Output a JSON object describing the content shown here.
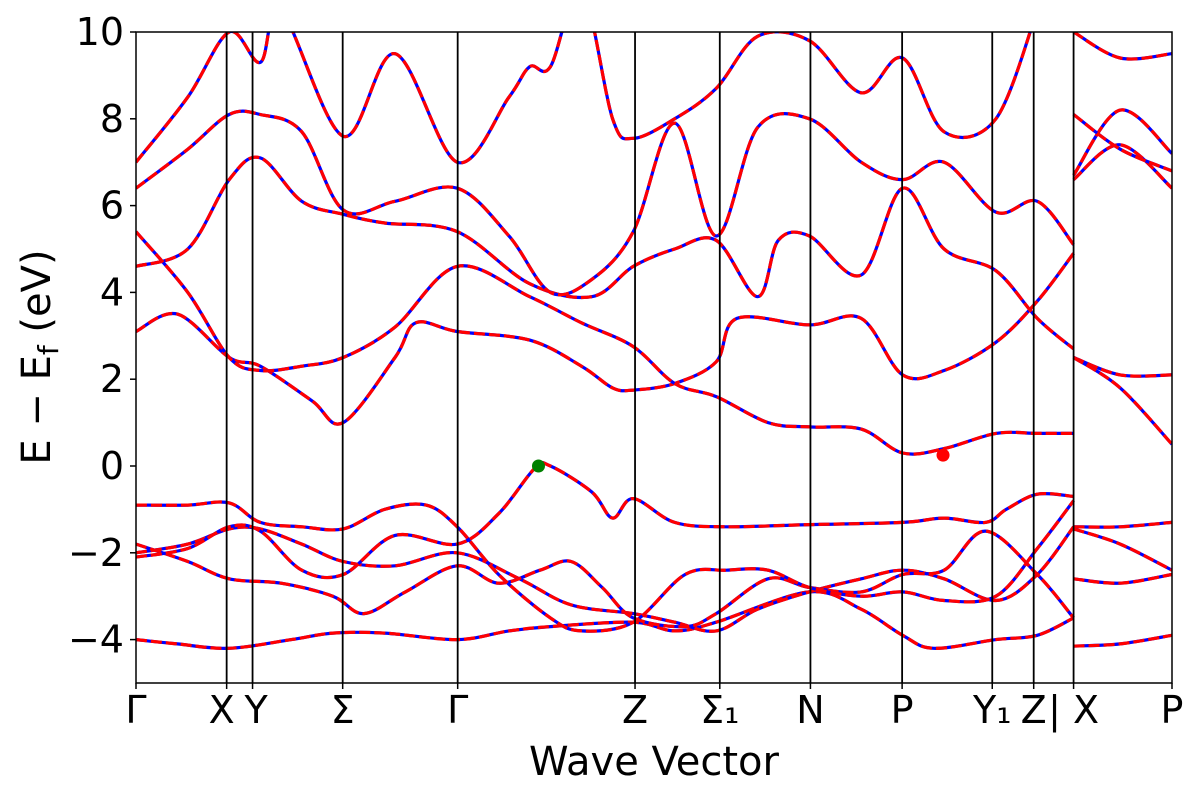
{
  "chart_data": {
    "type": "line",
    "xlabel": "Wave Vector",
    "ylabel": "E − E_f (eV)",
    "ylabel_parts": {
      "main": "E − E",
      "sub": "f",
      "unit": " (eV)"
    },
    "ylim": [
      -5,
      10
    ],
    "y_ticks": [
      -4,
      -2,
      0,
      2,
      4,
      6,
      8,
      10
    ],
    "y_tick_labels": [
      "−4",
      "−2",
      "0",
      "2",
      "4",
      "6",
      "8",
      "10"
    ],
    "k_ticks": [
      {
        "k": 0.0,
        "label": "Γ"
      },
      {
        "k": 0.0875,
        "label": "X"
      },
      {
        "k": 0.1125,
        "label": "Y"
      },
      {
        "k": 0.1995,
        "label": "Σ"
      },
      {
        "k": 0.3105,
        "label": "Γ"
      },
      {
        "k": 0.4817,
        "label": "Z"
      },
      {
        "k": 0.5635,
        "label": "Σ₁"
      },
      {
        "k": 0.651,
        "label": "N"
      },
      {
        "k": 0.7395,
        "label": "P"
      },
      {
        "k": 0.8265,
        "label": "Y₁"
      },
      {
        "k": 0.8665,
        "label": "Z"
      },
      {
        "k": 0.905,
        "label": "| X"
      },
      {
        "k": 1.0,
        "label": "P"
      }
    ],
    "k_break": 0.905,
    "x_range": [
      0,
      1
    ],
    "series": [
      {
        "style": "blue-solid-under-red-dashed",
        "bands": [
          [
            [
              0,
              -4.0
            ],
            [
              0.04,
              -4.1
            ],
            [
              0.09,
              -4.2
            ],
            [
              0.15,
              -4.0
            ],
            [
              0.19,
              -3.85
            ],
            [
              0.24,
              -3.85
            ],
            [
              0.31,
              -4.0
            ],
            [
              0.36,
              -3.8
            ],
            [
              0.4,
              -3.7
            ],
            [
              0.48,
              -3.6
            ],
            [
              0.52,
              -3.8
            ],
            [
              0.56,
              -3.6
            ],
            [
              0.65,
              -2.9
            ],
            [
              0.7,
              -3.3
            ],
            [
              0.74,
              -3.9
            ],
            [
              0.77,
              -4.2
            ],
            [
              0.83,
              -4.0
            ],
            [
              0.87,
              -3.9
            ],
            [
              0.905,
              -3.5
            ]
          ],
          [
            [
              0,
              -2.0
            ],
            [
              0.05,
              -1.8
            ],
            [
              0.09,
              -1.45
            ],
            [
              0.12,
              -1.45
            ],
            [
              0.16,
              -1.8
            ],
            [
              0.2,
              -2.2
            ],
            [
              0.25,
              -2.3
            ],
            [
              0.31,
              -2.0
            ],
            [
              0.37,
              -2.6
            ],
            [
              0.42,
              -3.2
            ],
            [
              0.48,
              -3.4
            ],
            [
              0.52,
              -3.6
            ],
            [
              0.56,
              -3.8
            ],
            [
              0.6,
              -3.3
            ],
            [
              0.65,
              -2.9
            ],
            [
              0.7,
              -2.6
            ],
            [
              0.74,
              -2.4
            ],
            [
              0.78,
              -2.6
            ],
            [
              0.83,
              -3.1
            ],
            [
              0.87,
              -2.5
            ],
            [
              0.905,
              -1.4
            ]
          ],
          [
            [
              0,
              -1.8
            ],
            [
              0.05,
              -2.2
            ],
            [
              0.09,
              -2.6
            ],
            [
              0.14,
              -2.7
            ],
            [
              0.19,
              -3.0
            ],
            [
              0.22,
              -3.4
            ],
            [
              0.26,
              -2.9
            ],
            [
              0.31,
              -2.3
            ],
            [
              0.35,
              -2.7
            ],
            [
              0.39,
              -2.4
            ],
            [
              0.42,
              -2.2
            ],
            [
              0.45,
              -2.8
            ],
            [
              0.48,
              -3.5
            ],
            [
              0.53,
              -3.7
            ],
            [
              0.56,
              -3.4
            ],
            [
              0.61,
              -2.6
            ],
            [
              0.65,
              -2.8
            ],
            [
              0.7,
              -2.9
            ],
            [
              0.74,
              -2.5
            ],
            [
              0.78,
              -2.4
            ],
            [
              0.82,
              -1.5
            ],
            [
              0.87,
              -2.5
            ],
            [
              0.905,
              -3.5
            ]
          ],
          [
            [
              0,
              -0.9
            ],
            [
              0.05,
              -0.9
            ],
            [
              0.09,
              -0.85
            ],
            [
              0.12,
              -1.3
            ],
            [
              0.16,
              -1.4
            ],
            [
              0.2,
              -1.45
            ],
            [
              0.24,
              -1.0
            ],
            [
              0.28,
              -0.9
            ],
            [
              0.31,
              -1.4
            ],
            [
              0.35,
              -2.5
            ],
            [
              0.4,
              -3.5
            ],
            [
              0.43,
              -3.8
            ],
            [
              0.48,
              -3.6
            ],
            [
              0.53,
              -2.5
            ],
            [
              0.57,
              -2.4
            ],
            [
              0.61,
              -2.4
            ],
            [
              0.65,
              -2.8
            ],
            [
              0.7,
              -3.0
            ],
            [
              0.74,
              -2.9
            ],
            [
              0.78,
              -3.1
            ],
            [
              0.83,
              -3.0
            ],
            [
              0.87,
              -1.9
            ],
            [
              0.905,
              -0.8
            ]
          ],
          [
            [
              0,
              -2.1
            ],
            [
              0.05,
              -1.9
            ],
            [
              0.09,
              -1.4
            ],
            [
              0.12,
              -1.5
            ],
            [
              0.16,
              -2.4
            ],
            [
              0.2,
              -2.5
            ],
            [
              0.25,
              -1.6
            ],
            [
              0.31,
              -1.8
            ],
            [
              0.35,
              -1.1
            ],
            [
              0.385,
              -0.05
            ],
            [
              0.4,
              0.0
            ],
            [
              0.44,
              -0.6
            ],
            [
              0.46,
              -1.2
            ],
            [
              0.48,
              -0.75
            ],
            [
              0.52,
              -1.3
            ],
            [
              0.57,
              -1.4
            ],
            [
              0.65,
              -1.35
            ],
            [
              0.74,
              -1.3
            ],
            [
              0.78,
              -1.2
            ],
            [
              0.82,
              -1.3
            ],
            [
              0.84,
              -1.0
            ],
            [
              0.87,
              -0.65
            ],
            [
              0.905,
              -0.7
            ]
          ],
          [
            [
              0,
              3.1
            ],
            [
              0.04,
              3.5
            ],
            [
              0.09,
              2.5
            ],
            [
              0.12,
              2.3
            ],
            [
              0.17,
              1.5
            ],
            [
              0.2,
              1.0
            ],
            [
              0.25,
              2.5
            ],
            [
              0.27,
              3.3
            ],
            [
              0.31,
              3.1
            ],
            [
              0.38,
              2.9
            ],
            [
              0.43,
              2.3
            ],
            [
              0.46,
              1.8
            ],
            [
              0.48,
              1.75
            ],
            [
              0.52,
              1.9
            ],
            [
              0.56,
              2.4
            ],
            [
              0.58,
              3.4
            ],
            [
              0.65,
              3.25
            ],
            [
              0.7,
              3.4
            ],
            [
              0.74,
              2.1
            ],
            [
              0.78,
              2.2
            ],
            [
              0.83,
              2.85
            ],
            [
              0.87,
              3.8
            ],
            [
              0.905,
              4.9
            ]
          ],
          [
            [
              0,
              4.6
            ],
            [
              0.05,
              5.0
            ],
            [
              0.09,
              6.6
            ],
            [
              0.12,
              7.1
            ],
            [
              0.16,
              6.1
            ],
            [
              0.2,
              5.8
            ],
            [
              0.24,
              5.6
            ],
            [
              0.31,
              5.4
            ],
            [
              0.38,
              4.2
            ],
            [
              0.44,
              3.9
            ],
            [
              0.48,
              4.6
            ],
            [
              0.52,
              5.0
            ],
            [
              0.56,
              5.2
            ],
            [
              0.6,
              3.9
            ],
            [
              0.62,
              5.2
            ],
            [
              0.65,
              5.3
            ],
            [
              0.7,
              4.4
            ],
            [
              0.74,
              6.4
            ],
            [
              0.78,
              5.0
            ],
            [
              0.83,
              4.5
            ],
            [
              0.87,
              3.4
            ],
            [
              0.905,
              2.7
            ]
          ],
          [
            [
              0,
              5.4
            ],
            [
              0.05,
              4.0
            ],
            [
              0.09,
              2.5
            ],
            [
              0.12,
              2.2
            ],
            [
              0.16,
              2.3
            ],
            [
              0.2,
              2.5
            ],
            [
              0.25,
              3.2
            ],
            [
              0.31,
              4.6
            ],
            [
              0.38,
              3.9
            ],
            [
              0.43,
              3.3
            ],
            [
              0.48,
              2.75
            ],
            [
              0.52,
              1.9
            ],
            [
              0.56,
              1.6
            ],
            [
              0.61,
              1.0
            ],
            [
              0.65,
              0.9
            ],
            [
              0.7,
              0.85
            ],
            [
              0.74,
              0.3
            ],
            [
              0.78,
              0.4
            ],
            [
              0.83,
              0.75
            ],
            [
              0.87,
              0.75
            ],
            [
              0.905,
              0.75
            ]
          ],
          [
            [
              0,
              6.4
            ],
            [
              0.05,
              7.3
            ],
            [
              0.09,
              8.1
            ],
            [
              0.12,
              8.1
            ],
            [
              0.16,
              7.7
            ],
            [
              0.2,
              5.9
            ],
            [
              0.25,
              6.1
            ],
            [
              0.31,
              6.4
            ],
            [
              0.36,
              5.3
            ],
            [
              0.4,
              4.0
            ],
            [
              0.44,
              4.3
            ],
            [
              0.48,
              5.4
            ],
            [
              0.52,
              7.9
            ],
            [
              0.56,
              5.3
            ],
            [
              0.6,
              7.8
            ],
            [
              0.65,
              8.0
            ],
            [
              0.7,
              7.0
            ],
            [
              0.74,
              6.6
            ],
            [
              0.78,
              7.0
            ],
            [
              0.83,
              5.85
            ],
            [
              0.87,
              6.1
            ],
            [
              0.905,
              5.1
            ]
          ],
          [
            [
              0,
              7.0
            ],
            [
              0.05,
              8.5
            ],
            [
              0.09,
              10.0
            ],
            [
              0.12,
              9.3
            ],
            [
              0.14,
              10.5
            ],
            [
              0.2,
              7.6
            ],
            [
              0.25,
              9.5
            ],
            [
              0.31,
              7.0
            ],
            [
              0.36,
              8.5
            ],
            [
              0.38,
              9.2
            ],
            [
              0.4,
              9.2
            ],
            [
              0.43,
              11.0
            ],
            [
              0.46,
              8.0
            ],
            [
              0.48,
              7.55
            ],
            [
              0.52,
              8.0
            ],
            [
              0.56,
              8.7
            ],
            [
              0.6,
              9.9
            ],
            [
              0.65,
              9.8
            ],
            [
              0.7,
              8.6
            ],
            [
              0.74,
              9.4
            ],
            [
              0.78,
              7.7
            ],
            [
              0.83,
              8.0
            ],
            [
              0.87,
              10.5
            ]
          ],
          [
            [
              0.905,
              2.5
            ],
            [
              0.95,
              2.1
            ],
            [
              1.0,
              2.1
            ]
          ],
          [
            [
              0.905,
              2.5
            ],
            [
              0.95,
              1.8
            ],
            [
              1.0,
              0.5
            ]
          ],
          [
            [
              0.905,
              -1.4
            ],
            [
              0.95,
              -1.4
            ],
            [
              1.0,
              -1.3
            ]
          ],
          [
            [
              0.905,
              -1.45
            ],
            [
              0.95,
              -1.8
            ],
            [
              1.0,
              -2.4
            ]
          ],
          [
            [
              0.905,
              -2.6
            ],
            [
              0.95,
              -2.7
            ],
            [
              1.0,
              -2.5
            ]
          ],
          [
            [
              0.905,
              -4.15
            ],
            [
              0.95,
              -4.1
            ],
            [
              1.0,
              -3.9
            ]
          ],
          [
            [
              0.905,
              6.6
            ],
            [
              0.95,
              7.4
            ],
            [
              1.0,
              6.4
            ]
          ],
          [
            [
              0.905,
              6.7
            ],
            [
              0.95,
              8.2
            ],
            [
              1.0,
              7.2
            ]
          ],
          [
            [
              0.905,
              8.1
            ],
            [
              0.95,
              7.3
            ],
            [
              1.0,
              6.8
            ]
          ],
          [
            [
              0.905,
              10.0
            ],
            [
              0.95,
              9.4
            ],
            [
              1.0,
              9.5
            ]
          ]
        ]
      }
    ],
    "markers": [
      {
        "k": 0.3885,
        "e": 0.0,
        "color": "#008000",
        "role": "valence-band-maximum"
      },
      {
        "k": 0.779,
        "e": 0.25,
        "color": "#ff0000",
        "role": "conduction-band-minimum"
      }
    ],
    "colors": {
      "band_solid": "#0000ff",
      "band_dashed": "#ff0000",
      "axes": "#000000"
    }
  }
}
